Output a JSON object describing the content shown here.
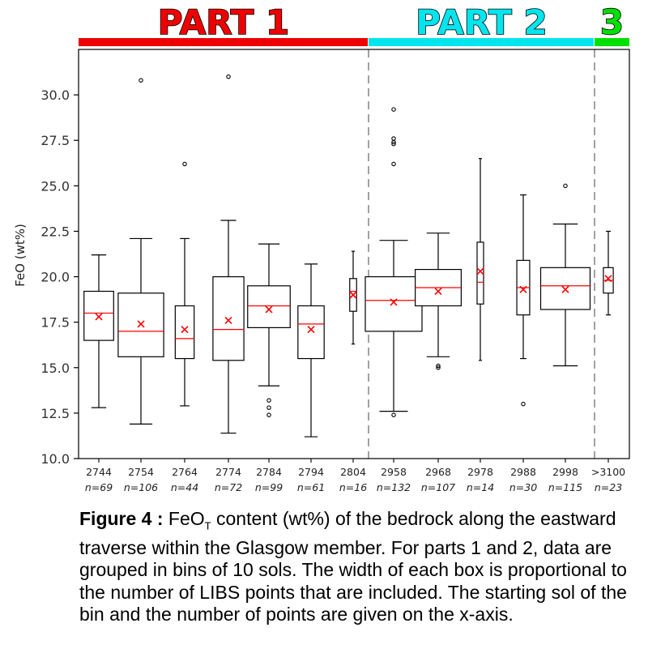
{
  "parts": [
    {
      "label": "PART 1",
      "color": "#ee0000",
      "from": 0,
      "to": 6
    },
    {
      "label": "PART 2",
      "color": "#00e5ee",
      "from": 7,
      "to": 11
    },
    {
      "label": "3",
      "color": "#00e000",
      "from": 12,
      "to": 12
    }
  ],
  "caption": {
    "label": "Figure 4 :",
    "text_pre": " FeO",
    "subscript": "T",
    "text_post": " content (wt%) of the bedrock along the eastward traverse within the Glasgow member. For parts 1 and 2, data are grouped in bins of 10 sols. The width of each box is proportional to the number of LIBS points that are included. The starting sol of the bin and the number of points are given on the x-axis."
  },
  "chart_data": {
    "type": "boxplot",
    "ylabel": "FeO (wt%)",
    "ylim": [
      10.0,
      32.5
    ],
    "yticks": [
      "10.0",
      "12.5",
      "15.0",
      "17.5",
      "20.0",
      "22.5",
      "25.0",
      "27.5",
      "30.0"
    ],
    "mean_color": "#ff0000",
    "median_color": "#ff0000",
    "part_dividers_after": [
      6,
      11
    ],
    "boxes": [
      {
        "category": "2744",
        "n_label": "n=69",
        "n": 69,
        "whisker_low": 12.8,
        "q1": 16.5,
        "median": 18.0,
        "q3": 19.2,
        "whisker_high": 21.2,
        "mean": 17.8,
        "outliers": []
      },
      {
        "category": "2754",
        "n_label": "n=106",
        "n": 106,
        "whisker_low": 11.9,
        "q1": 15.6,
        "median": 17.0,
        "q3": 19.1,
        "whisker_high": 22.1,
        "mean": 17.4,
        "outliers": [
          30.8
        ]
      },
      {
        "category": "2764",
        "n_label": "n=44",
        "n": 44,
        "whisker_low": 12.9,
        "q1": 15.5,
        "median": 16.6,
        "q3": 18.4,
        "whisker_high": 22.1,
        "mean": 17.1,
        "outliers": [
          26.2
        ]
      },
      {
        "category": "2774",
        "n_label": "n=72",
        "n": 72,
        "whisker_low": 11.4,
        "q1": 15.4,
        "median": 17.1,
        "q3": 20.0,
        "whisker_high": 23.1,
        "mean": 17.6,
        "outliers": [
          31.0
        ]
      },
      {
        "category": "2784",
        "n_label": "n=99",
        "n": 99,
        "whisker_low": 14.0,
        "q1": 17.2,
        "median": 18.4,
        "q3": 19.5,
        "whisker_high": 21.8,
        "mean": 18.2,
        "outliers": [
          13.2,
          12.8,
          12.4
        ]
      },
      {
        "category": "2794",
        "n_label": "n=61",
        "n": 61,
        "whisker_low": 11.2,
        "q1": 15.5,
        "median": 17.4,
        "q3": 18.4,
        "whisker_high": 20.7,
        "mean": 17.1,
        "outliers": []
      },
      {
        "category": "2804",
        "n_label": "n=16",
        "n": 16,
        "whisker_low": 16.3,
        "q1": 18.1,
        "median": 19.2,
        "q3": 19.9,
        "whisker_high": 21.4,
        "mean": 19.0,
        "outliers": []
      },
      {
        "category": "2958",
        "n_label": "n=132",
        "n": 132,
        "whisker_low": 12.6,
        "q1": 17.0,
        "median": 18.7,
        "q3": 20.0,
        "whisker_high": 22.0,
        "mean": 18.6,
        "outliers": [
          29.2,
          27.6,
          27.4,
          27.3,
          26.2,
          12.4
        ]
      },
      {
        "category": "2968",
        "n_label": "n=107",
        "n": 107,
        "whisker_low": 15.6,
        "q1": 18.4,
        "median": 19.4,
        "q3": 20.4,
        "whisker_high": 22.4,
        "mean": 19.2,
        "outliers": [
          15.1,
          15.0
        ]
      },
      {
        "category": "2978",
        "n_label": "n=14",
        "n": 14,
        "whisker_low": 15.4,
        "q1": 18.5,
        "median": 19.7,
        "q3": 21.9,
        "whisker_high": 26.5,
        "mean": 20.3,
        "outliers": []
      },
      {
        "category": "2988",
        "n_label": "n=30",
        "n": 30,
        "whisker_low": 15.5,
        "q1": 17.9,
        "median": 19.4,
        "q3": 20.9,
        "whisker_high": 24.5,
        "mean": 19.3,
        "outliers": [
          13.0
        ]
      },
      {
        "category": "2998",
        "n_label": "n=115",
        "n": 115,
        "whisker_low": 15.1,
        "q1": 18.2,
        "median": 19.5,
        "q3": 20.5,
        "whisker_high": 22.9,
        "mean": 19.3,
        "outliers": [
          25.0
        ]
      },
      {
        "category": ">3100",
        "n_label": "n=23",
        "n": 23,
        "whisker_low": 17.9,
        "q1": 19.1,
        "median": 19.8,
        "q3": 20.5,
        "whisker_high": 22.5,
        "mean": 19.9,
        "outliers": []
      }
    ]
  }
}
